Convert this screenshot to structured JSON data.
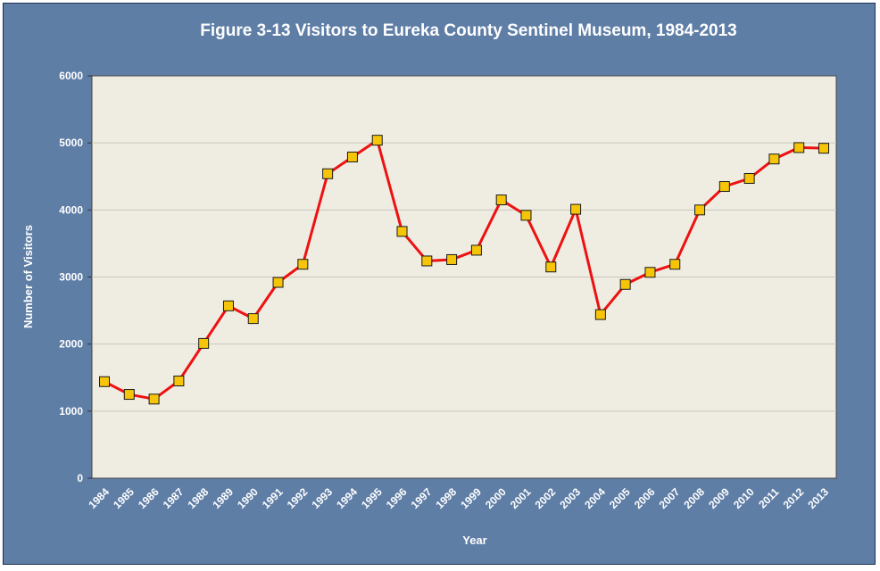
{
  "chart_data": {
    "type": "line",
    "title": "Figure 3-13 Visitors to Eureka County Sentinel Museum, 1984-2013",
    "xlabel": "Year",
    "ylabel": "Number of Visitors",
    "ylim": [
      0,
      6000
    ],
    "yticks": [
      0,
      1000,
      2000,
      3000,
      4000,
      5000,
      6000
    ],
    "grid": true,
    "legend": "none",
    "categories": [
      "1984",
      "1985",
      "1986",
      "1987",
      "1988",
      "1989",
      "1990",
      "1991",
      "1992",
      "1993",
      "1994",
      "1995",
      "1996",
      "1997",
      "1998",
      "1999",
      "2000",
      "2001",
      "2002",
      "2003",
      "2004",
      "2005",
      "2006",
      "2007",
      "2008",
      "2009",
      "2010",
      "2011",
      "2012",
      "2013"
    ],
    "series": [
      {
        "values": [
          1440,
          1250,
          1180,
          1450,
          2010,
          2570,
          2380,
          2920,
          3190,
          4540,
          4790,
          5040,
          3680,
          3240,
          3260,
          3400,
          4150,
          3920,
          3150,
          4010,
          2440,
          2890,
          3070,
          3190,
          4000,
          4350,
          4470,
          4760,
          4930,
          4920
        ]
      }
    ],
    "colors": {
      "background": "#5f7ea6",
      "plot_area": "#efede2",
      "line": "#ee1111",
      "marker_fill": "#f6c50a",
      "marker_edge": "#1a1a1a"
    }
  }
}
